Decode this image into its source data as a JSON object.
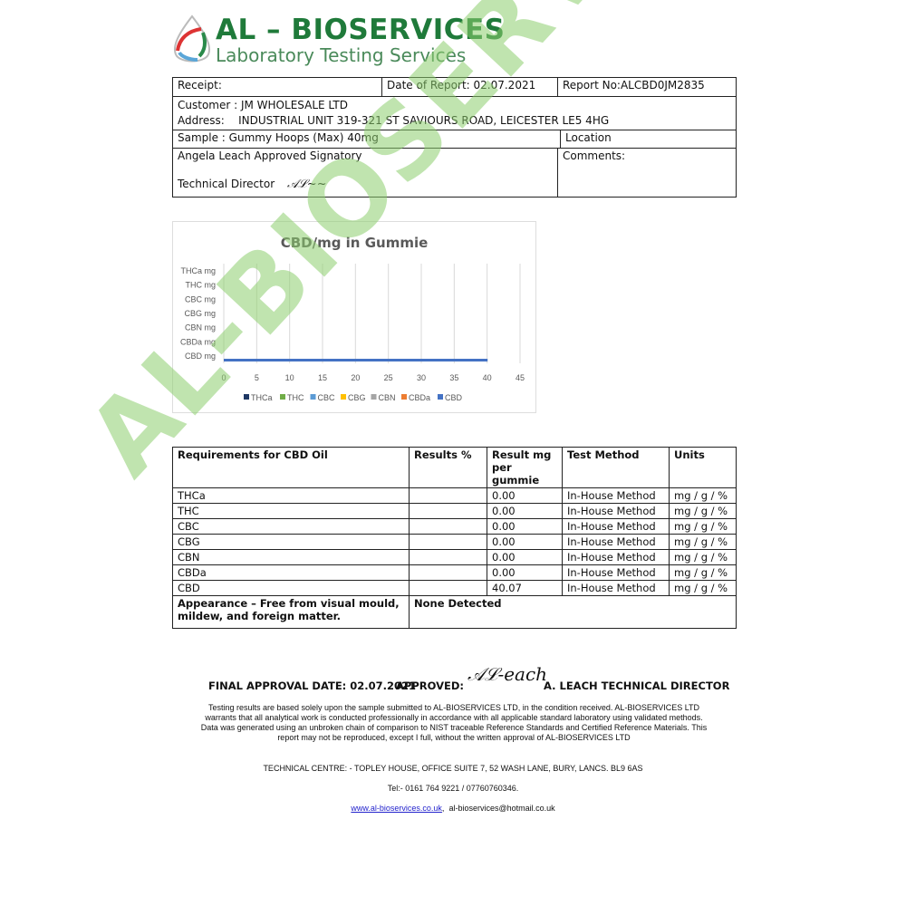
{
  "header": {
    "title": "AL – BIOSERVICES",
    "subtitle": "Laboratory Testing Services"
  },
  "watermark": "AL-BIOSERVICES",
  "info": {
    "receipt": "Receipt:",
    "date_of_report": "Date of Report: 02.07.2021",
    "report_no": "Report No:ALCBD0JM2835",
    "customer": "Customer : JM WHOLESALE LTD",
    "address_label": "Address:",
    "address": "INDUSTRIAL UNIT 319-321 ST SAVIOURS ROAD, LEICESTER LE5 4HG",
    "sample": "Sample : Gummy Hoops (Max) 40mg",
    "location": "Location",
    "signatory": "Angela Leach Approved Signatory",
    "technical_director": "Technical Director",
    "comments": "Comments:",
    "signature": "ALeach"
  },
  "chart_data": {
    "type": "bar",
    "orientation": "horizontal",
    "title": "CBD/mg in Gummie",
    "categories": [
      "THCa mg",
      "THC mg",
      "CBC mg",
      "CBG mg",
      "CBN mg",
      "CBDa mg",
      "CBD mg"
    ],
    "series": [
      {
        "name": "THCa",
        "color": "#1f3864",
        "values": [
          0,
          0,
          0,
          0,
          0,
          0,
          0
        ]
      },
      {
        "name": "THC",
        "color": "#70ad47",
        "values": [
          0,
          0,
          0,
          0,
          0,
          0,
          0
        ]
      },
      {
        "name": "CBC",
        "color": "#5b9bd5",
        "values": [
          0,
          0,
          0,
          0,
          0,
          0,
          0
        ]
      },
      {
        "name": "CBG",
        "color": "#ffc000",
        "values": [
          0,
          0,
          0,
          0,
          0,
          0,
          0
        ]
      },
      {
        "name": "CBN",
        "color": "#a5a5a5",
        "values": [
          0,
          0,
          0,
          0,
          0,
          0,
          0
        ]
      },
      {
        "name": "CBDa",
        "color": "#ed7d31",
        "values": [
          0,
          0,
          0,
          0,
          0,
          0,
          0
        ]
      },
      {
        "name": "CBD",
        "color": "#4472c4",
        "values": [
          0,
          0,
          0,
          0,
          0,
          0,
          40.07
        ]
      }
    ],
    "xticks": [
      "0",
      "5",
      "10",
      "15",
      "20",
      "25",
      "30",
      "35",
      "40",
      "45"
    ],
    "xlim": [
      0,
      45
    ],
    "grid": true,
    "legend": "bottom"
  },
  "results": {
    "headers": [
      "Requirements for CBD Oil",
      "Results %",
      "Result mg per gummie",
      "Test Method",
      "Units"
    ],
    "rows": [
      [
        "THCa",
        "",
        "0.00",
        "In-House Method",
        "mg / g / %"
      ],
      [
        "THC",
        "",
        "0.00",
        "In-House Method",
        "mg / g / %"
      ],
      [
        "CBC",
        "",
        "0.00",
        "In-House Method",
        "mg / g / %"
      ],
      [
        "CBG",
        "",
        "0.00",
        "In-House Method",
        "mg / g / %"
      ],
      [
        "CBN",
        "",
        "0.00",
        "In-House Method",
        "mg / g / %"
      ],
      [
        "CBDa",
        "",
        "0.00",
        "In-House Method",
        "mg / g / %"
      ],
      [
        "CBD",
        "",
        "40.07",
        "In-House Method",
        "mg / g / %"
      ]
    ],
    "appearance_label": "Appearance – Free from visual mould, mildew, and foreign matter.",
    "appearance_result": "None Detected"
  },
  "approval": {
    "date": "FINAL APPROVAL DATE: 02.07.2021",
    "approved": "APPROVED:",
    "signature": "ALeach",
    "name": "A. LEACH TECHNICAL DIRECTOR"
  },
  "disclaimer": "Testing results are based solely upon the sample submitted to AL-BIOSERVICES LTD, in the condition received. AL-BIOSERVICES LTD warrants that all analytical work is conducted professionally in accordance with all applicable standard laboratory using validated methods. Data was generated using an unbroken chain of comparison to NIST traceable Reference Standards and Certified Reference Materials. This report may not be reproduced, except I full, without the written approval of AL-BIOSERVICES LTD",
  "contact": {
    "address": "TECHNICAL CENTRE: - TOPLEY HOUSE, OFFICE SUITE 7, 52 WASH LANE, BURY, LANCS. BL9 6AS",
    "tel": "Tel:- 0161 764 9221 / 07760760346.",
    "website": "www.al-bioservices.co.uk",
    "email": "al-bioservices@hotmail.co.uk"
  }
}
